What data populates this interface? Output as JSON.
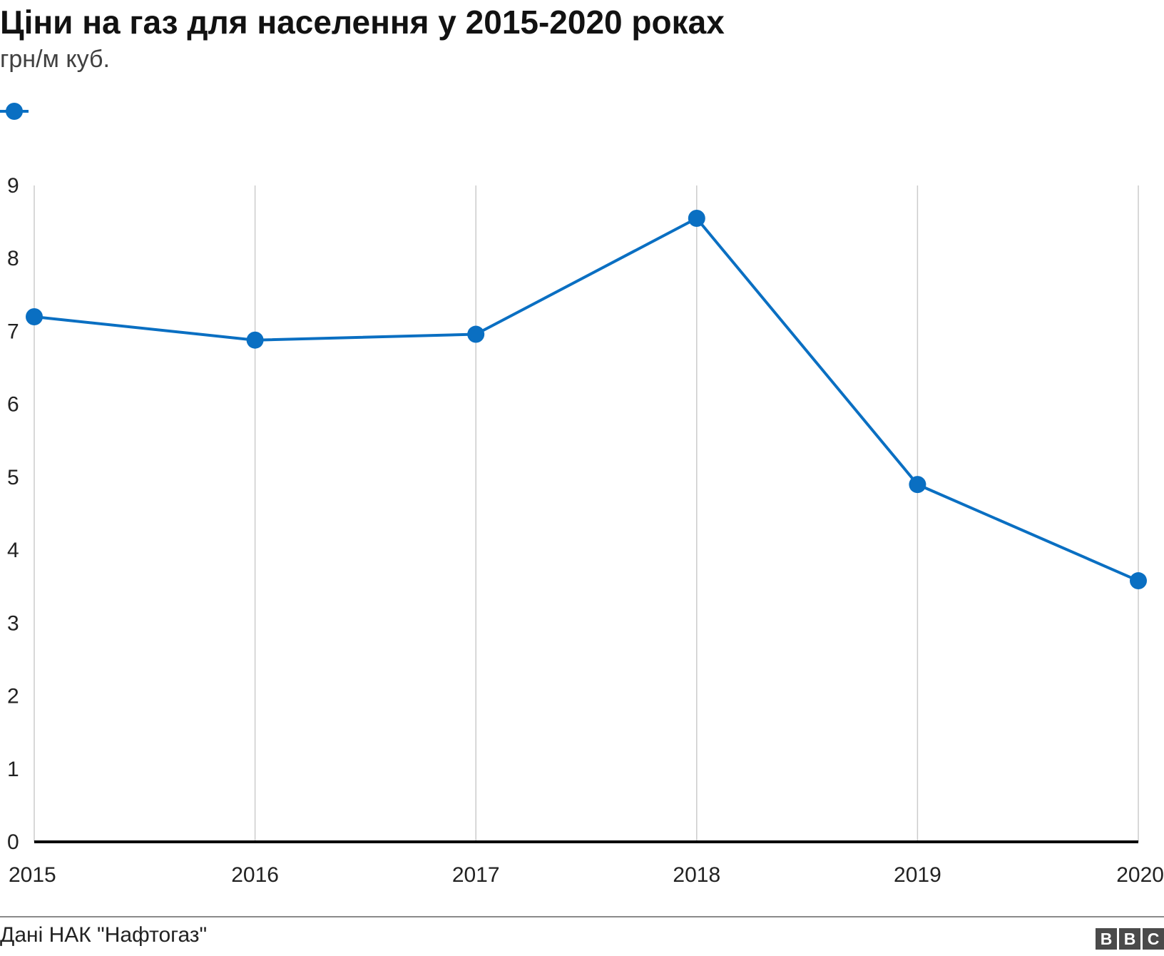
{
  "header": {
    "title": "Ціни на газ для населення у 2015-2020 роках",
    "subtitle": "грн/м куб."
  },
  "footer": {
    "source": "Дані НАК \"Нафтогаз\"",
    "logo_letters": [
      "B",
      "B",
      "C"
    ]
  },
  "colors": {
    "series": "#0a6fc2",
    "grid": "#cccccc",
    "baseline": "#000000",
    "text": "#222222"
  },
  "chart_data": {
    "type": "line",
    "title": "Ціни на газ для населення у 2015-2020 роках",
    "subtitle": "грн/м куб.",
    "x": [
      "2015",
      "2016",
      "2017",
      "2018",
      "2019",
      "2020"
    ],
    "series": [
      {
        "values": [
          7.2,
          6.88,
          6.96,
          8.55,
          4.9,
          3.58
        ]
      }
    ],
    "ylim": [
      0,
      9
    ],
    "yticks": [
      0,
      1,
      2,
      3,
      4,
      5,
      6,
      7,
      8,
      9
    ],
    "grid": "vertical",
    "legend": "top-left",
    "markers": true
  }
}
